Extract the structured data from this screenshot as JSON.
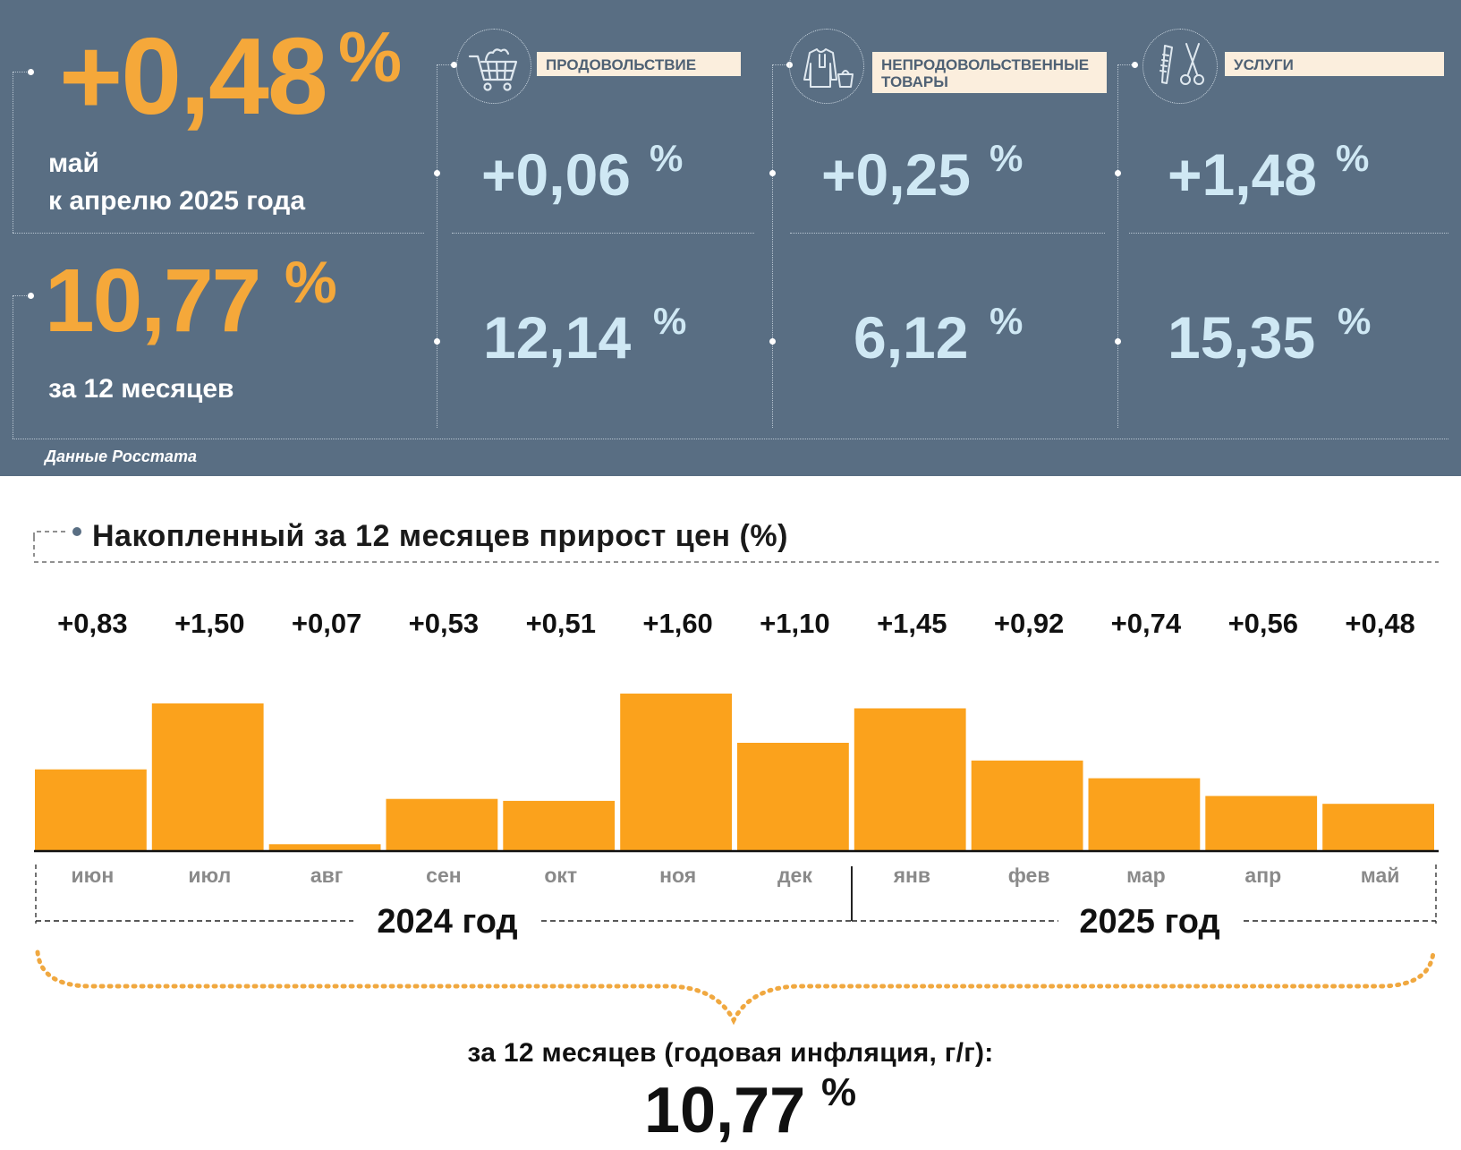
{
  "monthly": {
    "value": "+0,48",
    "unit": "%",
    "label_line1": "май",
    "label_line2": "к апрелю 2025 года"
  },
  "annual": {
    "value": "10,77",
    "unit": "%",
    "label": "за 12 месяцев"
  },
  "categories": [
    {
      "name": "ПРОДОВОЛЬСТВИЕ",
      "icon": "shopping-cart-icon",
      "monthly": "+0,06",
      "annual": "12,14",
      "unit": "%"
    },
    {
      "name": "НЕПРОДОВОЛЬСТВЕННЫЕ ТОВАРЫ",
      "icon": "clothes-icon",
      "monthly": "+0,25",
      "annual": "6,12",
      "unit": "%"
    },
    {
      "name": "УСЛУГИ",
      "icon": "scissors-comb-icon",
      "monthly": "+1,48",
      "annual": "15,35",
      "unit": "%"
    }
  ],
  "source": "Данные Росстата",
  "colors": {
    "panel_bg": "#596e83",
    "accent_orange": "#f5a83a",
    "bar_fill": "#fba21c",
    "value_blue": "#cfe8f4",
    "label_bg": "#fbeedd"
  },
  "chart_data": {
    "type": "bar",
    "title": "Накопленный за 12 месяцев прирост цен (%)",
    "categories": [
      "июн",
      "июл",
      "авг",
      "сен",
      "окт",
      "ноя",
      "дек",
      "янв",
      "фев",
      "мар",
      "апр",
      "май"
    ],
    "values": [
      0.83,
      1.5,
      0.07,
      0.53,
      0.51,
      1.6,
      1.1,
      1.45,
      0.92,
      0.74,
      0.56,
      0.48
    ],
    "value_labels": [
      "+0,83",
      "+1,50",
      "+0,07",
      "+0,53",
      "+0,51",
      "+1,60",
      "+1,10",
      "+1,45",
      "+0,92",
      "+0,74",
      "+0,56",
      "+0,48"
    ],
    "year_groups": [
      {
        "label": "2024 год",
        "from": "июн",
        "to": "дек"
      },
      {
        "label": "2025 год",
        "from": "янв",
        "to": "май"
      }
    ],
    "ylim": [
      0,
      1.6
    ],
    "grid": false,
    "legend": "none",
    "total_caption": "за 12 месяцев (годовая инфляция, г/г):",
    "total_value": "10,77",
    "total_unit": "%"
  }
}
